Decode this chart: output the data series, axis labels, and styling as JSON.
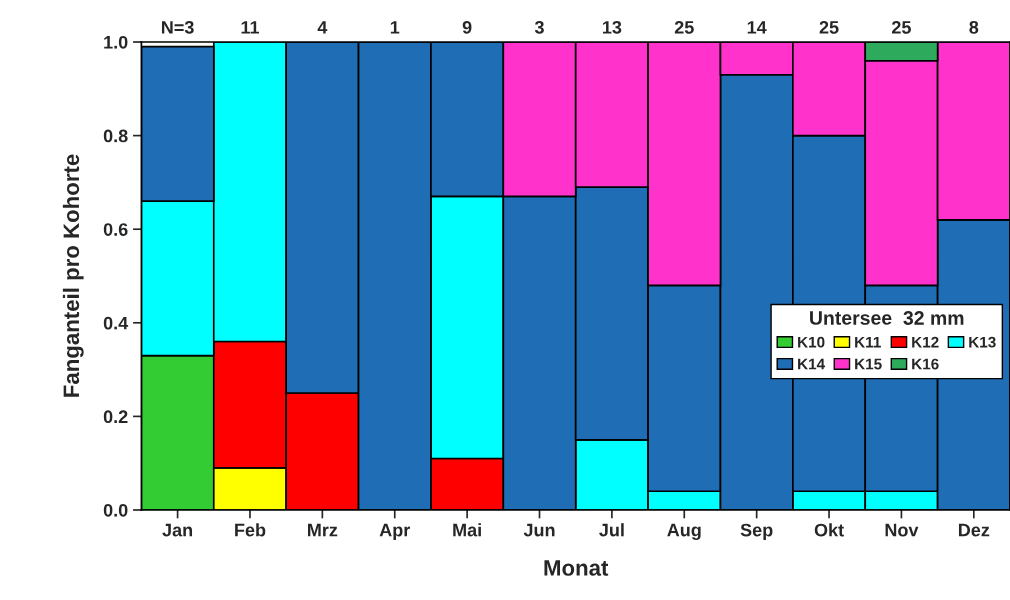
{
  "chart_data": {
    "type": "bar",
    "stacked": true,
    "xlabel": "Monat",
    "ylabel": "Fanganteil pro Kohorte",
    "legend_title": "Untersee  32 mm",
    "legend": "right",
    "categories": [
      "Jan",
      "Feb",
      "Mrz",
      "Apr",
      "Mai",
      "Jun",
      "Jul",
      "Aug",
      "Sep",
      "Okt",
      "Nov",
      "Dez"
    ],
    "series": [
      {
        "name": "K10",
        "color": "#33cc33",
        "values": [
          0.33,
          null,
          null,
          null,
          null,
          null,
          null,
          null,
          null,
          null,
          null,
          null
        ]
      },
      {
        "name": "K11",
        "color": "#ffff00",
        "values": [
          null,
          0.09,
          null,
          null,
          null,
          null,
          null,
          null,
          null,
          null,
          null,
          null
        ]
      },
      {
        "name": "K12",
        "color": "#ff0000",
        "values": [
          null,
          0.27,
          0.25,
          null,
          0.11,
          null,
          null,
          null,
          null,
          null,
          null,
          null
        ]
      },
      {
        "name": "K13",
        "color": "#00ffff",
        "values": [
          0.33,
          0.64,
          null,
          null,
          0.56,
          null,
          0.15,
          0.04,
          null,
          0.04,
          0.04,
          null
        ]
      },
      {
        "name": "K14",
        "color": "#1f6db5",
        "values": [
          0.33,
          null,
          0.75,
          1.0,
          0.33,
          0.67,
          0.54,
          0.44,
          0.93,
          0.76,
          0.44,
          0.62
        ]
      },
      {
        "name": "K15",
        "color": "#ff33cc",
        "values": [
          null,
          null,
          null,
          null,
          null,
          0.33,
          0.31,
          0.52,
          0.07,
          0.2,
          0.48,
          0.38
        ]
      },
      {
        "name": "K16",
        "color": "#2eaa5c",
        "values": [
          null,
          null,
          null,
          null,
          null,
          null,
          null,
          null,
          null,
          null,
          0.04,
          null
        ]
      }
    ],
    "ylim": [
      0,
      1.0
    ],
    "yticks": [
      {
        "value": 0,
        "label": "0.0"
      },
      {
        "value": 0.2,
        "label": "0.2"
      },
      {
        "value": 0.4,
        "label": "0.4"
      },
      {
        "value": 0.6,
        "label": "0.6"
      },
      {
        "value": 0.8,
        "label": "0.8"
      },
      {
        "value": 1.0,
        "label": "1.0"
      }
    ],
    "grid": false,
    "annotations": [
      "N=3",
      "11",
      "4",
      "1",
      "9",
      "3",
      "13",
      "25",
      "14",
      "25",
      "25",
      "8"
    ]
  }
}
